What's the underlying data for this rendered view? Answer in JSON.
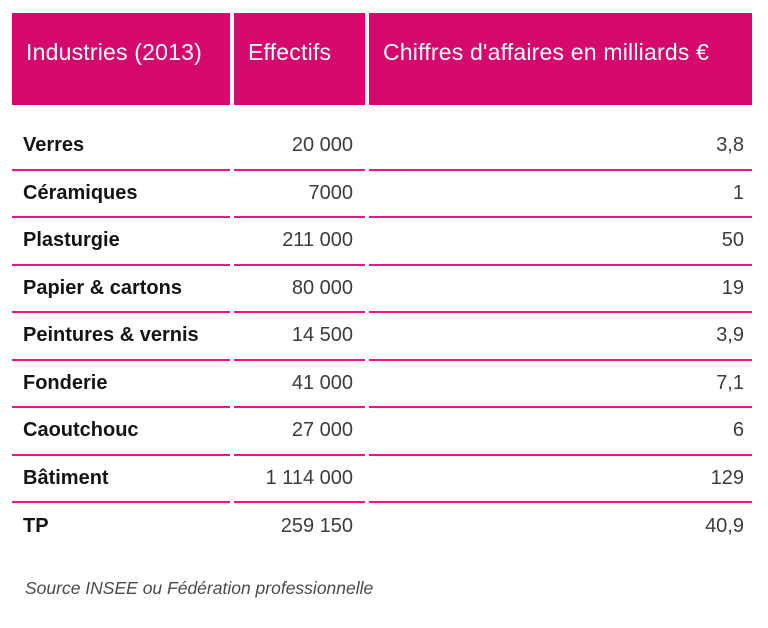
{
  "theme": {
    "header_bg": "#d5086e",
    "header_text": "#ffffff",
    "rule_color": "#ee1589"
  },
  "chart_data": {
    "type": "table",
    "columns": [
      "Industries (2013)",
      "Effectifs",
      "Chiffres d'affaires en milliards €"
    ],
    "rows": [
      {
        "industry": "Verres",
        "effectifs": "20 000",
        "ca": "3,8"
      },
      {
        "industry": "Céramiques",
        "effectifs": "7000",
        "ca": "1"
      },
      {
        "industry": "Plasturgie",
        "effectifs": "211 000",
        "ca": "50"
      },
      {
        "industry": "Papier & cartons",
        "effectifs": "80 000",
        "ca": "19"
      },
      {
        "industry": "Peintures & vernis",
        "effectifs": "14 500",
        "ca": "3,9"
      },
      {
        "industry": "Fonderie",
        "effectifs": "41 000",
        "ca": "7,1"
      },
      {
        "industry": "Caoutchouc",
        "effectifs": "27 000",
        "ca": "6"
      },
      {
        "industry": "Bâtiment",
        "effectifs": "1 114 000",
        "ca": "129"
      },
      {
        "industry": "TP",
        "effectifs": "259 150",
        "ca": "40,9"
      }
    ]
  },
  "source": "Source INSEE ou Fédération professionnelle"
}
